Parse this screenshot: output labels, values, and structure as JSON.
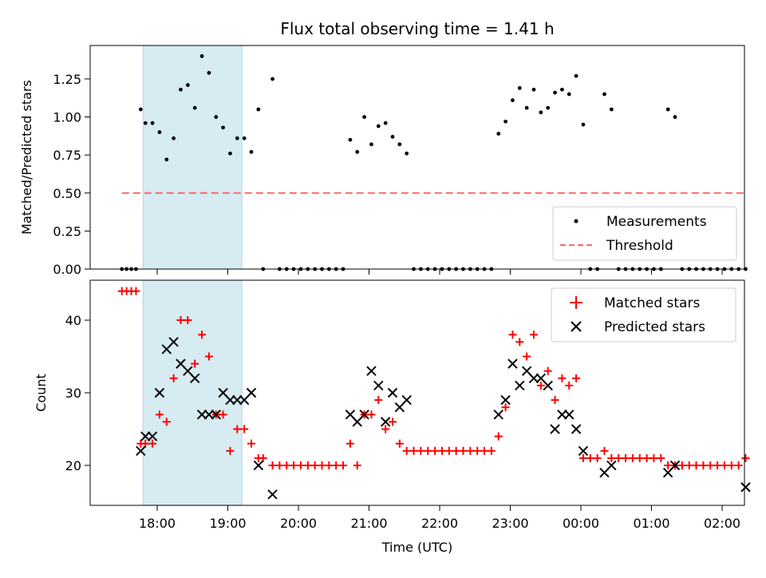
{
  "chart_data": [
    {
      "type": "scatter",
      "title": "Flux total observing time = 1.41 h",
      "xlabel": "",
      "ylabel": "Matched/Predicted stars",
      "xlim": [
        "17:12",
        "02:27"
      ],
      "ylim": [
        0,
        1.47
      ],
      "y_ticks": [
        "0.00",
        "0.25",
        "0.50",
        "0.75",
        "1.00",
        "1.25"
      ],
      "highlight_span": [
        "17:48",
        "19:12"
      ],
      "highlight_color": "#add8e6",
      "legend_position": "lower right",
      "series": [
        {
          "name": "Measurements",
          "marker": "dot",
          "color": "#000000",
          "points": [
            [
              "17:30",
              0
            ],
            [
              "17:34",
              0
            ],
            [
              "17:38",
              0
            ],
            [
              "17:42",
              0
            ],
            [
              "17:46",
              1.05
            ],
            [
              "17:50",
              0.96
            ],
            [
              "17:56",
              0.96
            ],
            [
              "18:02",
              0.9
            ],
            [
              "18:08",
              0.72
            ],
            [
              "18:14",
              0.86
            ],
            [
              "18:20",
              1.18
            ],
            [
              "18:26",
              1.21
            ],
            [
              "18:32",
              1.06
            ],
            [
              "18:38",
              1.4
            ],
            [
              "18:44",
              1.29
            ],
            [
              "18:50",
              1.0
            ],
            [
              "18:56",
              0.93
            ],
            [
              "19:02",
              0.76
            ],
            [
              "19:08",
              0.86
            ],
            [
              "19:14",
              0.86
            ],
            [
              "19:20",
              0.77
            ],
            [
              "19:26",
              1.05
            ],
            [
              "19:30",
              0
            ],
            [
              "19:38",
              1.25
            ],
            [
              "19:44",
              0
            ],
            [
              "19:50",
              0
            ],
            [
              "19:56",
              0
            ],
            [
              "20:02",
              0
            ],
            [
              "20:08",
              0
            ],
            [
              "20:14",
              0
            ],
            [
              "20:20",
              0
            ],
            [
              "20:26",
              0
            ],
            [
              "20:32",
              0
            ],
            [
              "20:38",
              0
            ],
            [
              "20:44",
              0.85
            ],
            [
              "20:50",
              0.77
            ],
            [
              "20:56",
              1.0
            ],
            [
              "21:02",
              0.82
            ],
            [
              "21:08",
              0.94
            ],
            [
              "21:14",
              0.96
            ],
            [
              "21:20",
              0.87
            ],
            [
              "21:26",
              0.82
            ],
            [
              "21:32",
              0.76
            ],
            [
              "21:38",
              0
            ],
            [
              "21:44",
              0
            ],
            [
              "21:50",
              0
            ],
            [
              "21:56",
              0
            ],
            [
              "22:02",
              0
            ],
            [
              "22:08",
              0
            ],
            [
              "22:14",
              0
            ],
            [
              "22:20",
              0
            ],
            [
              "22:26",
              0
            ],
            [
              "22:32",
              0
            ],
            [
              "22:38",
              0
            ],
            [
              "22:44",
              0
            ],
            [
              "22:50",
              0.89
            ],
            [
              "22:56",
              0.97
            ],
            [
              "23:02",
              1.11
            ],
            [
              "23:08",
              1.19
            ],
            [
              "23:14",
              1.06
            ],
            [
              "23:20",
              1.18
            ],
            [
              "23:26",
              1.03
            ],
            [
              "23:32",
              1.06
            ],
            [
              "23:38",
              1.16
            ],
            [
              "23:44",
              1.18
            ],
            [
              "23:50",
              1.15
            ],
            [
              "23:56",
              1.27
            ],
            [
              "00:02",
              0.95
            ],
            [
              "00:08",
              0
            ],
            [
              "00:14",
              0
            ],
            [
              "00:20",
              1.15
            ],
            [
              "00:26",
              1.05
            ],
            [
              "00:32",
              0
            ],
            [
              "00:38",
              0
            ],
            [
              "00:44",
              0
            ],
            [
              "00:50",
              0
            ],
            [
              "00:56",
              0
            ],
            [
              "01:02",
              0
            ],
            [
              "01:08",
              0
            ],
            [
              "01:14",
              1.05
            ],
            [
              "01:20",
              1.0
            ],
            [
              "01:26",
              0
            ],
            [
              "01:32",
              0
            ],
            [
              "01:38",
              0
            ],
            [
              "01:44",
              0
            ],
            [
              "01:50",
              0
            ],
            [
              "01:56",
              0
            ],
            [
              "02:02",
              0
            ],
            [
              "02:08",
              0
            ],
            [
              "02:14",
              0
            ],
            [
              "02:20",
              0
            ]
          ]
        },
        {
          "name": "Threshold",
          "marker": "dashed-line",
          "color": "#ff6666",
          "points": [
            [
              "17:30",
              0.5
            ],
            [
              "02:20",
              0.5
            ]
          ]
        }
      ]
    },
    {
      "type": "scatter",
      "title": "",
      "xlabel": "Time (UTC)",
      "ylabel": "Count",
      "xlim": [
        "17:12",
        "02:27"
      ],
      "ylim": [
        14.5,
        45.5
      ],
      "y_ticks": [
        "20",
        "30",
        "40"
      ],
      "x_ticks": [
        "18:00",
        "19:00",
        "20:00",
        "21:00",
        "22:00",
        "23:00",
        "00:00",
        "01:00",
        "02:00"
      ],
      "highlight_span": [
        "17:48",
        "19:12"
      ],
      "highlight_color": "#add8e6",
      "legend_position": "upper right",
      "series": [
        {
          "name": "Matched stars",
          "marker": "plus",
          "color": "#ff0000",
          "points": [
            [
              "17:30",
              44
            ],
            [
              "17:34",
              44
            ],
            [
              "17:38",
              44
            ],
            [
              "17:42",
              44
            ],
            [
              "17:46",
              23
            ],
            [
              "17:50",
              23
            ],
            [
              "17:56",
              23
            ],
            [
              "18:02",
              27
            ],
            [
              "18:08",
              26
            ],
            [
              "18:14",
              32
            ],
            [
              "18:20",
              40
            ],
            [
              "18:26",
              40
            ],
            [
              "18:32",
              34
            ],
            [
              "18:38",
              38
            ],
            [
              "18:44",
              35
            ],
            [
              "18:50",
              27
            ],
            [
              "18:56",
              27
            ],
            [
              "19:02",
              22
            ],
            [
              "19:08",
              25
            ],
            [
              "19:14",
              25
            ],
            [
              "19:20",
              23
            ],
            [
              "19:26",
              21
            ],
            [
              "19:30",
              21
            ],
            [
              "19:38",
              20
            ],
            [
              "19:44",
              20
            ],
            [
              "19:50",
              20
            ],
            [
              "19:56",
              20
            ],
            [
              "20:02",
              20
            ],
            [
              "20:08",
              20
            ],
            [
              "20:14",
              20
            ],
            [
              "20:20",
              20
            ],
            [
              "20:26",
              20
            ],
            [
              "20:32",
              20
            ],
            [
              "20:38",
              20
            ],
            [
              "20:44",
              23
            ],
            [
              "20:50",
              20
            ],
            [
              "20:56",
              27
            ],
            [
              "21:02",
              27
            ],
            [
              "21:08",
              29
            ],
            [
              "21:14",
              25
            ],
            [
              "21:20",
              26
            ],
            [
              "21:26",
              23
            ],
            [
              "21:32",
              22
            ],
            [
              "21:38",
              22
            ],
            [
              "21:44",
              22
            ],
            [
              "21:50",
              22
            ],
            [
              "21:56",
              22
            ],
            [
              "22:02",
              22
            ],
            [
              "22:08",
              22
            ],
            [
              "22:14",
              22
            ],
            [
              "22:20",
              22
            ],
            [
              "22:26",
              22
            ],
            [
              "22:32",
              22
            ],
            [
              "22:38",
              22
            ],
            [
              "22:44",
              22
            ],
            [
              "22:50",
              24
            ],
            [
              "22:56",
              28
            ],
            [
              "23:02",
              38
            ],
            [
              "23:08",
              37
            ],
            [
              "23:14",
              35
            ],
            [
              "23:20",
              38
            ],
            [
              "23:26",
              31
            ],
            [
              "23:32",
              33
            ],
            [
              "23:38",
              29
            ],
            [
              "23:44",
              32
            ],
            [
              "23:50",
              31
            ],
            [
              "23:56",
              32
            ],
            [
              "00:02",
              21
            ],
            [
              "00:08",
              21
            ],
            [
              "00:14",
              21
            ],
            [
              "00:20",
              22
            ],
            [
              "00:26",
              21
            ],
            [
              "00:32",
              21
            ],
            [
              "00:38",
              21
            ],
            [
              "00:44",
              21
            ],
            [
              "00:50",
              21
            ],
            [
              "00:56",
              21
            ],
            [
              "01:02",
              21
            ],
            [
              "01:08",
              21
            ],
            [
              "01:14",
              20
            ],
            [
              "01:20",
              20
            ],
            [
              "01:26",
              20
            ],
            [
              "01:32",
              20
            ],
            [
              "01:38",
              20
            ],
            [
              "01:44",
              20
            ],
            [
              "01:50",
              20
            ],
            [
              "01:56",
              20
            ],
            [
              "02:02",
              20
            ],
            [
              "02:08",
              20
            ],
            [
              "02:14",
              20
            ],
            [
              "02:20",
              21
            ]
          ]
        },
        {
          "name": "Predicted stars",
          "marker": "x",
          "color": "#000000",
          "points": [
            [
              "17:46",
              22
            ],
            [
              "17:50",
              24
            ],
            [
              "17:56",
              24
            ],
            [
              "18:02",
              30
            ],
            [
              "18:08",
              36
            ],
            [
              "18:14",
              37
            ],
            [
              "18:20",
              34
            ],
            [
              "18:26",
              33
            ],
            [
              "18:32",
              32
            ],
            [
              "18:38",
              27
            ],
            [
              "18:44",
              27
            ],
            [
              "18:50",
              27
            ],
            [
              "18:56",
              30
            ],
            [
              "19:02",
              29
            ],
            [
              "19:08",
              29
            ],
            [
              "19:14",
              29
            ],
            [
              "19:20",
              30
            ],
            [
              "19:26",
              20
            ],
            [
              "19:38",
              16
            ],
            [
              "20:44",
              27
            ],
            [
              "20:50",
              26
            ],
            [
              "20:56",
              27
            ],
            [
              "21:02",
              33
            ],
            [
              "21:08",
              31
            ],
            [
              "21:14",
              26
            ],
            [
              "21:20",
              30
            ],
            [
              "21:26",
              28
            ],
            [
              "21:32",
              29
            ],
            [
              "22:50",
              27
            ],
            [
              "22:56",
              29
            ],
            [
              "23:02",
              34
            ],
            [
              "23:08",
              31
            ],
            [
              "23:14",
              33
            ],
            [
              "23:20",
              32
            ],
            [
              "23:26",
              32
            ],
            [
              "23:32",
              31
            ],
            [
              "23:38",
              25
            ],
            [
              "23:44",
              27
            ],
            [
              "23:50",
              27
            ],
            [
              "23:56",
              25
            ],
            [
              "00:02",
              22
            ],
            [
              "00:20",
              19
            ],
            [
              "00:26",
              20
            ],
            [
              "01:14",
              19
            ],
            [
              "01:20",
              20
            ],
            [
              "02:20",
              17
            ]
          ]
        }
      ]
    }
  ]
}
